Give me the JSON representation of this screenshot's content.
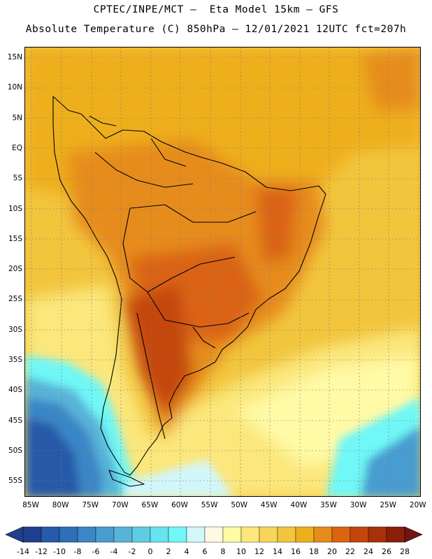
{
  "header": {
    "line1": "CPTEC/INPE/MCT –  Eta Model 15km – GFS",
    "line2": "Absolute Temperature (C) 850hPa – 12/01/2021 12UTC fct=207h"
  },
  "map": {
    "lat_labels": [
      "15N",
      "10N",
      "5N",
      "EQ",
      "5S",
      "10S",
      "15S",
      "20S",
      "25S",
      "30S",
      "35S",
      "40S",
      "45S",
      "50S",
      "55S"
    ],
    "lon_labels": [
      "85W",
      "80W",
      "75W",
      "70W",
      "65W",
      "60W",
      "55W",
      "50W",
      "45W",
      "40W",
      "35W",
      "30W",
      "25W",
      "20W"
    ]
  },
  "legend": {
    "labels": [
      "-14",
      "-12",
      "-10",
      "-8",
      "-6",
      "-4",
      "-2",
      "0",
      "2",
      "4",
      "6",
      "8",
      "10",
      "12",
      "14",
      "16",
      "18",
      "20",
      "22",
      "24",
      "26",
      "28"
    ],
    "colors": [
      "#1f3f8f",
      "#275aa8",
      "#2f6fb8",
      "#3a86c6",
      "#4a9ccf",
      "#59b3d8",
      "#60cce4",
      "#66e4f0",
      "#70f7f7",
      "#d2f7fb",
      "#fff9e4",
      "#fffaa6",
      "#fbe77c",
      "#f6d559",
      "#f2c53d",
      "#eeaf1f",
      "#e68c1a",
      "#da6412",
      "#c4460c",
      "#a8300a",
      "#8a1f0a",
      "#731410"
    ]
  }
}
